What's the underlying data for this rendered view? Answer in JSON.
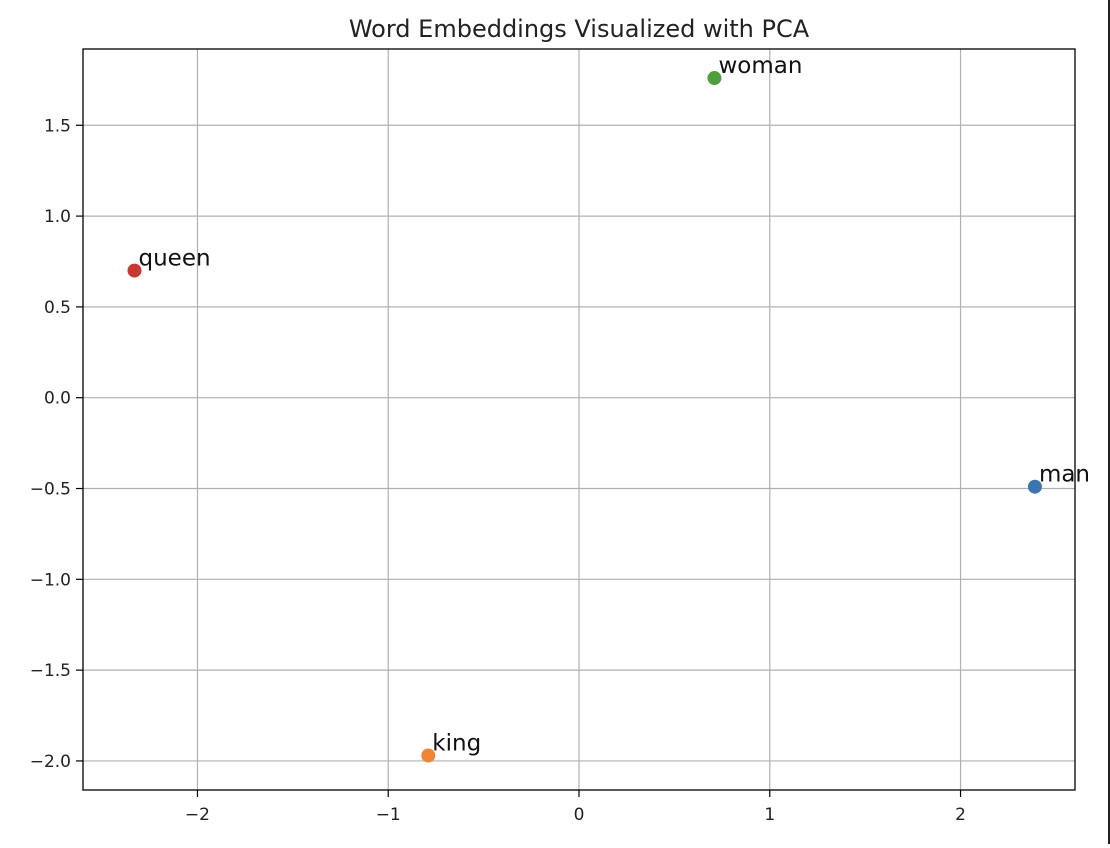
{
  "chart_data": {
    "type": "scatter",
    "title": "Word Embeddings Visualized with PCA",
    "xlabel": "",
    "ylabel": "",
    "xlim": [
      -2.6,
      2.6
    ],
    "ylim": [
      -2.16,
      1.92
    ],
    "grid": true,
    "xticks": [
      -2,
      -1,
      0,
      1,
      2
    ],
    "xtick_labels": [
      "−2",
      "−1",
      "0",
      "1",
      "2"
    ],
    "yticks": [
      1.5,
      1.0,
      0.5,
      0.0,
      -0.5,
      -1.0,
      -1.5,
      -2.0
    ],
    "ytick_labels": [
      "1.5",
      "1.0",
      "0.5",
      "0.0",
      "−0.5",
      "−1.0",
      "−1.5",
      "−2.0"
    ],
    "points": [
      {
        "label": "man",
        "x": 2.39,
        "y": -0.49,
        "color": "#3b75af"
      },
      {
        "label": "king",
        "x": -0.79,
        "y": -1.97,
        "color": "#ef8636"
      },
      {
        "label": "woman",
        "x": 0.71,
        "y": 1.76,
        "color": "#519e3e"
      },
      {
        "label": "queen",
        "x": -2.33,
        "y": 0.7,
        "color": "#c53a32"
      }
    ]
  },
  "style": {
    "grid_color": "#b0b0b0",
    "axis_color": "#000000",
    "text_color": "#222222"
  }
}
